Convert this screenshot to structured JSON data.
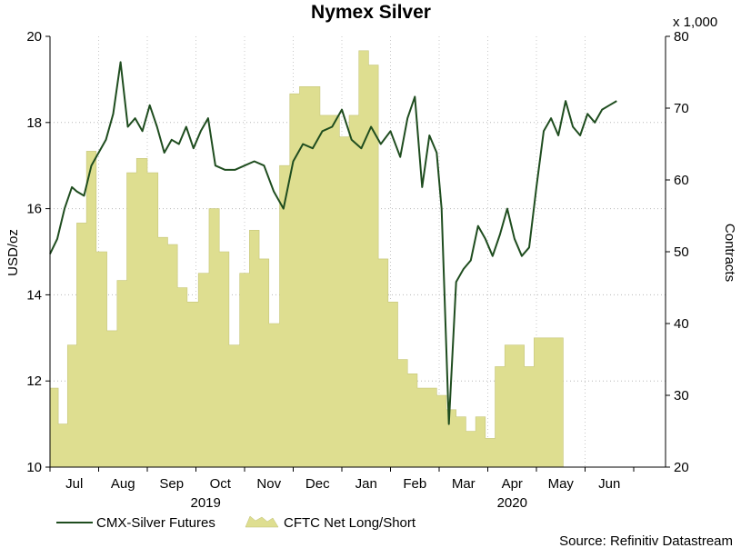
{
  "chart_data": {
    "type": "bar+line",
    "title": "Nymex Silver",
    "left_axis": {
      "label": "USD/oz",
      "range": [
        10,
        20
      ],
      "ticks": [
        "10",
        "12",
        "14",
        "16",
        "18",
        "20"
      ]
    },
    "right_axis": {
      "label": "Contracts",
      "multiplier": "x 1,000",
      "range": [
        20,
        80
      ],
      "ticks": [
        "20",
        "30",
        "40",
        "50",
        "60",
        "70",
        "80"
      ]
    },
    "x_axis": {
      "months": [
        "Jul",
        "Aug",
        "Sep",
        "Oct",
        "Nov",
        "Dec",
        "Jan",
        "Feb",
        "Mar",
        "Apr",
        "May",
        "Jun"
      ],
      "years": [
        "2019",
        "2020"
      ]
    },
    "source": "Source: Refinitiv Datastream",
    "series": [
      {
        "name": "CFTC Net Long/Short",
        "type": "bar",
        "axis": "right",
        "color": "#dede90",
        "x_month_index": [
          0,
          0.17,
          0.36,
          0.55,
          0.75,
          0.95,
          1.17,
          1.38,
          1.58,
          1.78,
          2.0,
          2.22,
          2.42,
          2.62,
          2.82,
          3.05,
          3.27,
          3.48,
          3.68,
          3.9,
          4.1,
          4.3,
          4.5,
          4.72,
          4.93,
          5.13,
          5.35,
          5.55,
          5.75,
          5.95,
          6.15,
          6.35,
          6.55,
          6.75,
          6.95,
          7.15,
          7.35,
          7.55,
          7.75,
          7.95,
          8.15,
          8.35,
          8.55,
          8.75,
          8.95,
          9.15,
          9.35,
          9.55,
          9.75,
          9.95,
          10.15,
          10.35,
          10.55,
          10.75,
          10.95,
          11.15,
          11.35,
          11.55,
          11.75,
          12.0
        ],
        "values": [
          31,
          26,
          37,
          54,
          64,
          50,
          39,
          46,
          61,
          63,
          61,
          52,
          51,
          45,
          43,
          47,
          56,
          50,
          37,
          47,
          53,
          49,
          40,
          62,
          72,
          73,
          73,
          69,
          69,
          66,
          69,
          78,
          76,
          49,
          43,
          35,
          33,
          31,
          31,
          30,
          28,
          27,
          25,
          27,
          24,
          34,
          37,
          37,
          34,
          38,
          38,
          38,
          20,
          20,
          20,
          20,
          20,
          20,
          20,
          20
        ]
      },
      {
        "name": "CMX-Silver Futures",
        "type": "line",
        "axis": "left",
        "color": "#1f4d1f",
        "x_month_index": [
          0,
          0.15,
          0.3,
          0.45,
          0.55,
          0.7,
          0.85,
          1.0,
          1.15,
          1.3,
          1.45,
          1.6,
          1.75,
          1.9,
          2.05,
          2.2,
          2.35,
          2.5,
          2.65,
          2.8,
          2.95,
          3.1,
          3.25,
          3.4,
          3.6,
          3.8,
          4.0,
          4.2,
          4.4,
          4.6,
          4.8,
          5.0,
          5.2,
          5.4,
          5.6,
          5.8,
          6.0,
          6.2,
          6.4,
          6.6,
          6.8,
          7.0,
          7.2,
          7.35,
          7.5,
          7.65,
          7.8,
          7.95,
          8.05,
          8.2,
          8.35,
          8.5,
          8.65,
          8.8,
          8.95,
          9.1,
          9.25,
          9.4,
          9.55,
          9.7,
          9.85,
          10.0,
          10.15,
          10.3,
          10.45,
          10.6,
          10.75,
          10.9,
          11.05,
          11.2,
          11.35,
          11.5,
          11.65
        ],
        "values": [
          14.95,
          15.3,
          16.0,
          16.5,
          16.4,
          16.3,
          17.0,
          17.3,
          17.6,
          18.2,
          19.4,
          17.9,
          18.1,
          17.8,
          18.4,
          17.9,
          17.3,
          17.6,
          17.5,
          17.9,
          17.4,
          17.8,
          18.1,
          17.0,
          16.9,
          16.9,
          17.0,
          17.1,
          17.0,
          16.4,
          16.0,
          17.1,
          17.5,
          17.4,
          17.8,
          17.9,
          18.3,
          17.6,
          17.4,
          17.9,
          17.5,
          17.8,
          17.2,
          18.1,
          18.6,
          16.5,
          17.7,
          17.3,
          16.0,
          11.0,
          14.3,
          14.6,
          14.8,
          15.6,
          15.3,
          14.9,
          15.4,
          16.0,
          15.3,
          14.9,
          15.1,
          16.5,
          17.8,
          18.1,
          17.7,
          18.5,
          17.9,
          17.7,
          18.2,
          18.0,
          18.3,
          18.4,
          18.5
        ]
      }
    ]
  }
}
